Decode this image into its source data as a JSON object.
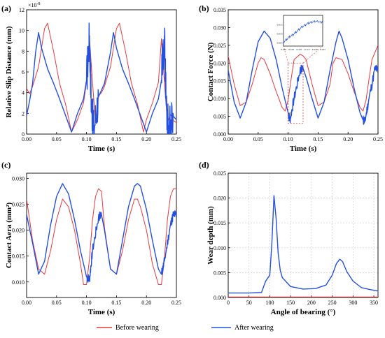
{
  "colors": {
    "before": "#e8383d",
    "after": "#2450e0"
  },
  "legend": {
    "before": "Before wearing",
    "after": "After wearing"
  },
  "chart_data": [
    {
      "panel": "(a)",
      "type": "line",
      "xlabel": "Time (s)",
      "ylabel": "Relative Slip Distance (mm)",
      "y_multiplier_label": "×10",
      "y_multiplier_exp": "-8",
      "xlim": [
        0,
        0.25
      ],
      "ylim": [
        0,
        12
      ],
      "xticks": [
        "0.00",
        "0.05",
        "0.10",
        "0.15",
        "0.20",
        "0.25"
      ],
      "yticks": [
        "0",
        "2",
        "4",
        "6",
        "8",
        "10",
        "12"
      ],
      "series": [
        {
          "name": "Before wearing",
          "x": [
            0,
            0.005,
            0.01,
            0.02,
            0.03,
            0.035,
            0.045,
            0.055,
            0.065,
            0.075,
            0.085,
            0.095,
            0.1,
            0.105,
            0.11,
            0.115,
            0.12,
            0.125,
            0.13,
            0.14,
            0.15,
            0.155,
            0.165,
            0.175,
            0.185,
            0.195,
            0.2,
            0.21,
            0.22,
            0.225,
            0.23,
            0.235,
            0.24,
            0.245,
            0.25
          ],
          "y": [
            4.4,
            3.9,
            4.6,
            6.5,
            10.2,
            10.7,
            8.0,
            4.9,
            2.9,
            0.2,
            1.4,
            3.0,
            5.0,
            9.2,
            5.0,
            1.1,
            3.7,
            4.0,
            4.6,
            6.5,
            10.2,
            10.7,
            8.0,
            4.9,
            2.9,
            0.2,
            1.4,
            3.0,
            5.0,
            9.2,
            5.0,
            1.1,
            1.9,
            1.3,
            1.1
          ]
        },
        {
          "name": "After wearing",
          "x": [
            0,
            0.005,
            0.01,
            0.015,
            0.02,
            0.025,
            0.035,
            0.045,
            0.055,
            0.065,
            0.075,
            0.085,
            0.095,
            0.1,
            0.105,
            0.108,
            0.112,
            0.12,
            0.13,
            0.14,
            0.145,
            0.15,
            0.16,
            0.17,
            0.18,
            0.19,
            0.2,
            0.21,
            0.22,
            0.225,
            0.23,
            0.233,
            0.237,
            0.245,
            0.25
          ],
          "y": [
            1.8,
            3.2,
            4.9,
            7.9,
            9.8,
            8.3,
            6.3,
            4.9,
            3.4,
            1.8,
            0.2,
            2.0,
            3.4,
            5.2,
            9.5,
            3.0,
            0.4,
            3.6,
            4.9,
            7.9,
            9.8,
            8.3,
            6.3,
            4.9,
            3.4,
            1.8,
            0.2,
            2.0,
            3.4,
            5.2,
            9.5,
            3.0,
            0.4,
            1.7,
            1.4
          ]
        }
      ]
    },
    {
      "panel": "(b)",
      "type": "line",
      "xlabel": "Time (s)",
      "ylabel": "Contact Force (N)",
      "xlim": [
        0,
        0.25
      ],
      "ylim": [
        0,
        0.035
      ],
      "xticks": [
        "0.00",
        "0.05",
        "0.10",
        "0.15",
        "0.20",
        "0.25"
      ],
      "yticks": [
        "0.000",
        "0.005",
        "0.010",
        "0.015",
        "0.020",
        "0.025",
        "0.030",
        "0.035"
      ],
      "series": [
        {
          "name": "Before wearing",
          "x": [
            0,
            0.01,
            0.02,
            0.03,
            0.04,
            0.05,
            0.055,
            0.06,
            0.07,
            0.08,
            0.09,
            0.095,
            0.1,
            0.105,
            0.11,
            0.12,
            0.125,
            0.13,
            0.14,
            0.15,
            0.16,
            0.17,
            0.175,
            0.18,
            0.19,
            0.2,
            0.21,
            0.22,
            0.225,
            0.23,
            0.235,
            0.24,
            0.25
          ],
          "y": [
            0.022,
            0.014,
            0.008,
            0.009,
            0.014,
            0.02,
            0.0215,
            0.021,
            0.017,
            0.012,
            0.0075,
            0.0065,
            0.0095,
            0.0155,
            0.021,
            0.0225,
            0.022,
            0.021,
            0.014,
            0.008,
            0.009,
            0.014,
            0.02,
            0.0215,
            0.021,
            0.017,
            0.012,
            0.0075,
            0.0065,
            0.0095,
            0.0155,
            0.021,
            0.025
          ]
        },
        {
          "name": "After wearing",
          "x": [
            0,
            0.01,
            0.02,
            0.03,
            0.04,
            0.05,
            0.06,
            0.07,
            0.08,
            0.09,
            0.1,
            0.103,
            0.11,
            0.12,
            0.125,
            0.13,
            0.14,
            0.15,
            0.16,
            0.17,
            0.18,
            0.185,
            0.19,
            0.2,
            0.21,
            0.22,
            0.225,
            0.228,
            0.235,
            0.245,
            0.25
          ],
          "y": [
            0.018,
            0.009,
            0.0045,
            0.009,
            0.018,
            0.026,
            0.029,
            0.027,
            0.021,
            0.013,
            0.006,
            0.004,
            0.01,
            0.018,
            0.0185,
            0.016,
            0.01,
            0.0045,
            0.009,
            0.018,
            0.026,
            0.029,
            0.027,
            0.021,
            0.013,
            0.006,
            0.004,
            0.0035,
            0.01,
            0.0185,
            0.018
          ]
        }
      ],
      "inset": {
        "xlim": [
          0.1,
          0.125
        ],
        "ylim": [
          0.003,
          0.02
        ],
        "xticks": [
          "0.100",
          "0.105",
          "0.110",
          "0.115",
          "0.120",
          "0.125"
        ],
        "yticks": [
          "0.005",
          "0.010",
          "0.015"
        ],
        "x": [
          0.1,
          0.102,
          0.104,
          0.106,
          0.108,
          0.11,
          0.112,
          0.114,
          0.116,
          0.118,
          0.12,
          0.122,
          0.124,
          0.125
        ],
        "y": [
          0.0045,
          0.0065,
          0.008,
          0.009,
          0.0105,
          0.012,
          0.0135,
          0.0145,
          0.0155,
          0.016,
          0.0165,
          0.0165,
          0.016,
          0.016
        ]
      }
    },
    {
      "panel": "(c)",
      "type": "line",
      "xlabel": "Time (s)",
      "ylabel": "Contact Aera (mm²)",
      "xlim": [
        0,
        0.25
      ],
      "ylim": [
        0.007,
        0.031
      ],
      "xticks": [
        "0.00",
        "0.05",
        "0.10",
        "0.15",
        "0.20",
        "0.25"
      ],
      "yticks": [
        "0.010",
        "0.015",
        "0.020",
        "0.025",
        "0.030"
      ],
      "series": [
        {
          "name": "Before wearing",
          "x": [
            0,
            0.01,
            0.02,
            0.03,
            0.04,
            0.05,
            0.06,
            0.07,
            0.08,
            0.09,
            0.095,
            0.1,
            0.105,
            0.11,
            0.115,
            0.12,
            0.125,
            0.13,
            0.14,
            0.15,
            0.16,
            0.17,
            0.18,
            0.185,
            0.19,
            0.2,
            0.21,
            0.22,
            0.225,
            0.23,
            0.235,
            0.24,
            0.245,
            0.25
          ],
          "y": [
            0.026,
            0.018,
            0.0125,
            0.0115,
            0.016,
            0.022,
            0.026,
            0.0245,
            0.02,
            0.0135,
            0.0095,
            0.0095,
            0.0145,
            0.022,
            0.0265,
            0.028,
            0.0275,
            0.0205,
            0.0125,
            0.0115,
            0.016,
            0.022,
            0.026,
            0.026,
            0.0245,
            0.02,
            0.0135,
            0.0095,
            0.0095,
            0.0145,
            0.022,
            0.0265,
            0.028,
            0.028
          ]
        },
        {
          "name": "After wearing",
          "x": [
            0,
            0.01,
            0.02,
            0.03,
            0.04,
            0.05,
            0.06,
            0.07,
            0.08,
            0.09,
            0.1,
            0.105,
            0.11,
            0.12,
            0.125,
            0.13,
            0.14,
            0.15,
            0.16,
            0.17,
            0.18,
            0.185,
            0.19,
            0.2,
            0.21,
            0.22,
            0.225,
            0.23,
            0.24,
            0.245,
            0.25
          ],
          "y": [
            0.023,
            0.0175,
            0.0115,
            0.014,
            0.021,
            0.0265,
            0.029,
            0.027,
            0.022,
            0.016,
            0.011,
            0.0105,
            0.016,
            0.0225,
            0.023,
            0.02,
            0.0125,
            0.0115,
            0.018,
            0.0245,
            0.0285,
            0.029,
            0.0285,
            0.024,
            0.018,
            0.0125,
            0.0115,
            0.014,
            0.021,
            0.023,
            0.023
          ]
        }
      ]
    },
    {
      "panel": "(d)",
      "type": "line",
      "xlabel": "Angle of bearing (°)",
      "ylabel": "Wear depth (mm)",
      "xlim": [
        0,
        360
      ],
      "ylim": [
        0,
        0.025
      ],
      "grid": true,
      "xticks": [
        "0",
        "50",
        "100",
        "150",
        "200",
        "250",
        "300",
        "350"
      ],
      "yticks": [
        "0.000",
        "0.005",
        "0.010",
        "0.015",
        "0.020",
        "0.025"
      ],
      "series": [
        {
          "name": "Before wearing",
          "x": [
            0,
            360
          ],
          "y": [
            0.0001,
            0.0001
          ]
        },
        {
          "name": "After wearing",
          "x": [
            0,
            50,
            80,
            90,
            100,
            105,
            110,
            115,
            120,
            125,
            130,
            150,
            180,
            210,
            235,
            250,
            260,
            268,
            275,
            285,
            300,
            320,
            340,
            360
          ],
          "y": [
            0.0009,
            0.0009,
            0.001,
            0.0033,
            0.0045,
            0.011,
            0.0205,
            0.016,
            0.009,
            0.0055,
            0.004,
            0.0022,
            0.0017,
            0.0018,
            0.0025,
            0.0045,
            0.0068,
            0.0077,
            0.0072,
            0.0052,
            0.0033,
            0.002,
            0.0016,
            0.0013
          ]
        }
      ]
    }
  ]
}
